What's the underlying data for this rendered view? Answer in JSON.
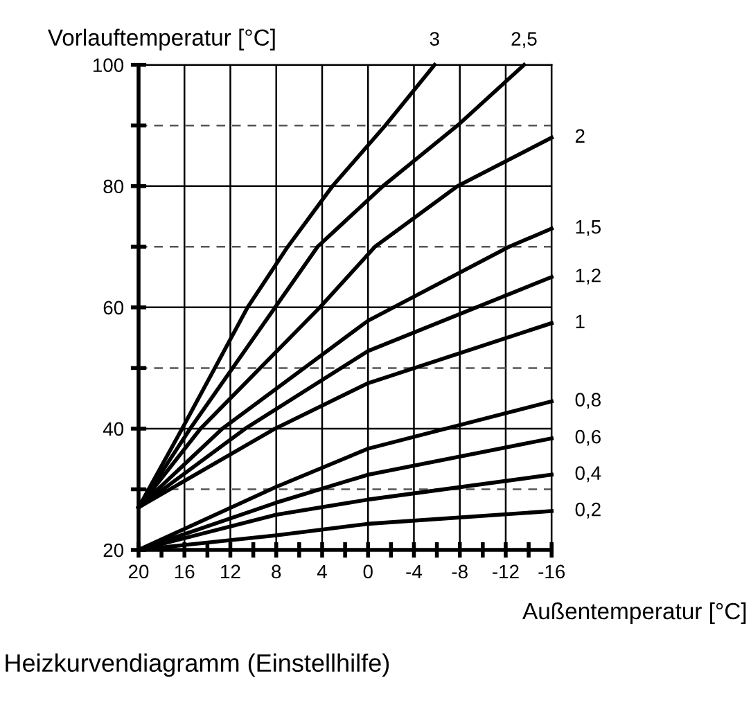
{
  "chart_data": {
    "type": "line",
    "title": "Heizkurvendiagramm (Einstellhilfe)",
    "xlabel": "Außentemperatur [°C]",
    "ylabel": "Vorlauftemperatur [°C]",
    "xlim": [
      20,
      -16
    ],
    "xticks": [
      20,
      {
        "value": 18,
        "label": null
      },
      16,
      {
        "value": 14,
        "label": null
      },
      12,
      {
        "value": 10,
        "label": null
      },
      8,
      {
        "value": 6,
        "label": null
      },
      4,
      {
        "value": 2,
        "label": null
      },
      0,
      {
        "value": -2,
        "label": null
      },
      -4,
      {
        "value": -6,
        "label": null
      },
      -8,
      {
        "value": -10,
        "label": null
      },
      -12,
      {
        "value": -14,
        "label": null
      },
      -16
    ],
    "ylim": [
      20,
      100
    ],
    "yticks": [
      20,
      {
        "value": 30,
        "label": null
      },
      40,
      {
        "value": 50,
        "label": null
      },
      60,
      {
        "value": 70,
        "label": null
      },
      80,
      {
        "value": 90,
        "label": null
      },
      100
    ],
    "grid": true,
    "legend": false,
    "marker": "none",
    "line_style": "solid",
    "series": [
      {
        "name": "3",
        "color": "#000000",
        "x": [
          20,
          16.2,
          10.5,
          7,
          3.1,
          -1.5,
          -5.8
        ],
        "values": [
          27,
          40,
          60,
          70,
          80,
          90,
          100
        ]
      },
      {
        "name": "2,5",
        "color": "#000000",
        "x": [
          20,
          15.5,
          8.1,
          4.4,
          -1.3,
          -7.8,
          -13.6
        ],
        "values": [
          27,
          40,
          60,
          70,
          80,
          90,
          100
        ]
      },
      {
        "name": "2",
        "color": "#000000",
        "x": [
          20,
          14.6,
          4.2,
          -0.6,
          -7.8,
          -16
        ],
        "values": [
          27,
          40,
          60,
          70,
          80,
          88
        ]
      },
      {
        "name": "1,5",
        "color": "#000000",
        "x": [
          20,
          12.7,
          0,
          -12.3,
          -16
        ],
        "values": [
          27,
          40,
          57.8,
          70,
          73
        ]
      },
      {
        "name": "1,2",
        "color": "#000000",
        "x": [
          20,
          10.7,
          0,
          -16
        ],
        "values": [
          27,
          40,
          52.8,
          65
        ]
      },
      {
        "name": "1",
        "color": "#000000",
        "x": [
          20,
          8.1,
          0,
          -16
        ],
        "values": [
          27,
          40,
          47.5,
          57.4
        ]
      },
      {
        "name": "0,8",
        "color": "#000000",
        "x": [
          20,
          8,
          0,
          -16
        ],
        "values": [
          20,
          30.4,
          36.7,
          44.5
        ]
      },
      {
        "name": "0,6",
        "color": "#000000",
        "x": [
          20,
          8,
          0,
          -16
        ],
        "values": [
          20,
          27.8,
          32.4,
          38.4
        ]
      },
      {
        "name": "0,4",
        "color": "#000000",
        "x": [
          20,
          8,
          0,
          -16
        ],
        "values": [
          20,
          25.8,
          28.3,
          32.4
        ]
      },
      {
        "name": "0,2",
        "color": "#000000",
        "x": [
          20,
          8,
          0,
          -16
        ],
        "values": [
          20,
          22.4,
          24.3,
          26.4
        ]
      }
    ]
  }
}
